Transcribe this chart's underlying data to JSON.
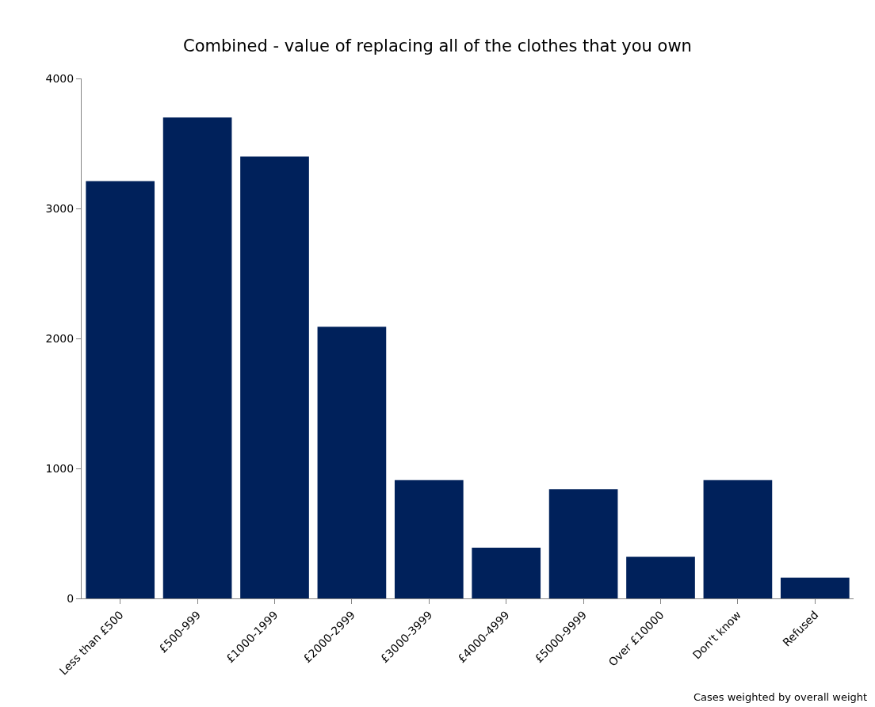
{
  "chart_data": {
    "type": "bar",
    "title": "Combined - value of replacing all of the clothes that you own",
    "categories": [
      "Less than £500",
      "£500-999",
      "£1000-1999",
      "£2000-2999",
      "£3000-3999",
      "£4000-4999",
      "£5000-9999",
      "Over £10000",
      "Don't know",
      "Refused"
    ],
    "values": [
      3210,
      3700,
      3400,
      2090,
      910,
      390,
      840,
      320,
      910,
      160
    ],
    "color": "#00215b",
    "ylim": [
      0,
      4000
    ],
    "yticks": [
      0,
      1000,
      2000,
      3000,
      4000
    ],
    "annotations": [
      "Cases weighted by overall weight"
    ]
  }
}
